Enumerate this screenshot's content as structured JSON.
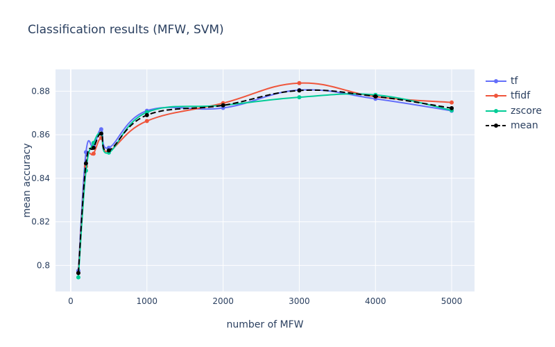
{
  "chart_data": {
    "type": "line",
    "title": "Classification results (MFW, SVM)",
    "xlabel": "number of MFW",
    "ylabel": "mean accuracy",
    "xlim": [
      -200,
      5300
    ],
    "ylim": [
      0.788,
      0.89
    ],
    "x_ticks": [
      0,
      1000,
      2000,
      3000,
      4000,
      5000
    ],
    "y_ticks": [
      0.8,
      0.82,
      0.84,
      0.86,
      0.88
    ],
    "x_tick_labels": [
      "0",
      "1000",
      "2000",
      "3000",
      "4000",
      "5000"
    ],
    "y_tick_labels": [
      "0.8",
      "0.82",
      "0.84",
      "0.86",
      "0.88"
    ],
    "grid": true,
    "legend_position": "right",
    "x": [
      100,
      200,
      300,
      400,
      500,
      1000,
      2000,
      3000,
      4000,
      5000
    ],
    "series": [
      {
        "name": "tf",
        "color": "#636efa",
        "dash": "solid",
        "values": [
          0.7975,
          0.852,
          0.8545,
          0.8625,
          0.854,
          0.871,
          0.8723,
          0.8805,
          0.8765,
          0.871
        ]
      },
      {
        "name": "tfidf",
        "color": "#ef553b",
        "dash": "solid",
        "values": [
          0.7965,
          0.8455,
          0.8513,
          0.8585,
          0.8525,
          0.8663,
          0.8745,
          0.8837,
          0.8775,
          0.8748
        ]
      },
      {
        "name": "zscore",
        "color": "#00cc96",
        "dash": "solid",
        "values": [
          0.7945,
          0.8435,
          0.8562,
          0.8605,
          0.8518,
          0.8703,
          0.8735,
          0.8772,
          0.8783,
          0.8712
        ]
      },
      {
        "name": "mean",
        "color": "#000000",
        "dash": "dash",
        "values": [
          0.7965,
          0.8468,
          0.854,
          0.8605,
          0.8528,
          0.869,
          0.8735,
          0.8803,
          0.8776,
          0.8722
        ]
      }
    ]
  }
}
